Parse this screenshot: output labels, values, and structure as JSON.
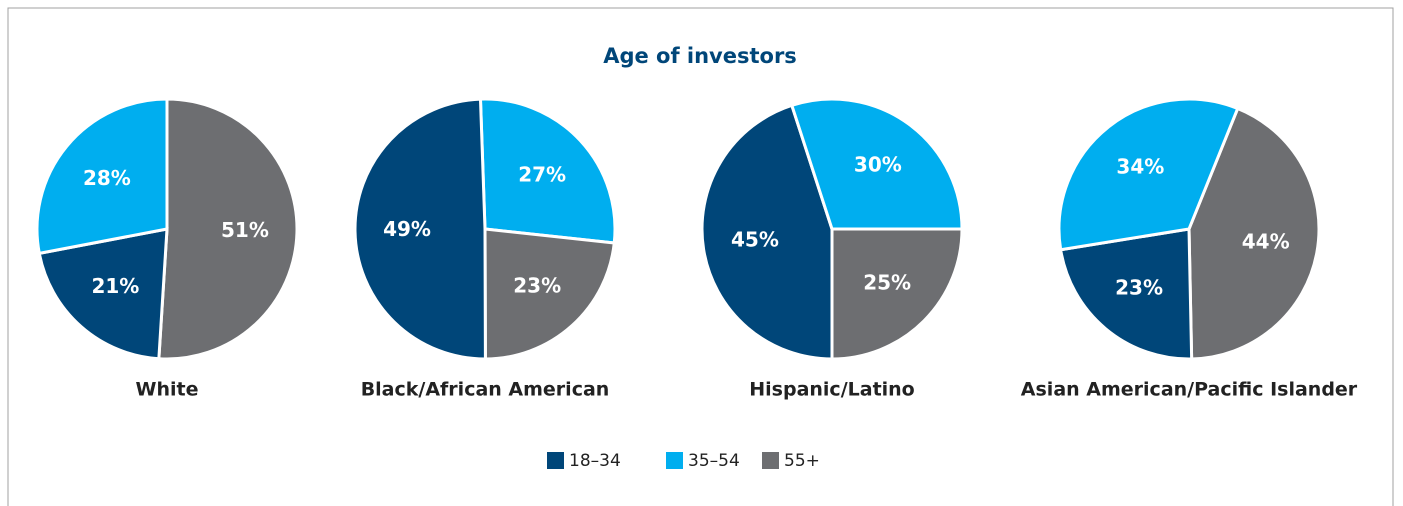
{
  "chart_data": {
    "type": "pie",
    "title": "Age of investors",
    "series": [
      {
        "name": "18–34",
        "color": "#004679"
      },
      {
        "name": "35–54",
        "color": "#00aeef"
      },
      {
        "name": "55+",
        "color": "#6d6e71"
      }
    ],
    "charts": [
      {
        "name": "White",
        "values": [
          21,
          28,
          51
        ]
      },
      {
        "name": "Black/African American",
        "values": [
          49,
          27,
          23
        ]
      },
      {
        "name": "Hispanic/Latino",
        "values": [
          45,
          30,
          25
        ]
      },
      {
        "name": "Asian American/Pacific Islander",
        "values": [
          23,
          34,
          44
        ]
      }
    ],
    "value_labels": [
      [
        "21%",
        "28%",
        "51%"
      ],
      [
        "49%",
        "27%",
        "23%"
      ],
      [
        "45%",
        "30%",
        "25%"
      ],
      [
        "23%",
        "34%",
        "44%"
      ]
    ]
  }
}
